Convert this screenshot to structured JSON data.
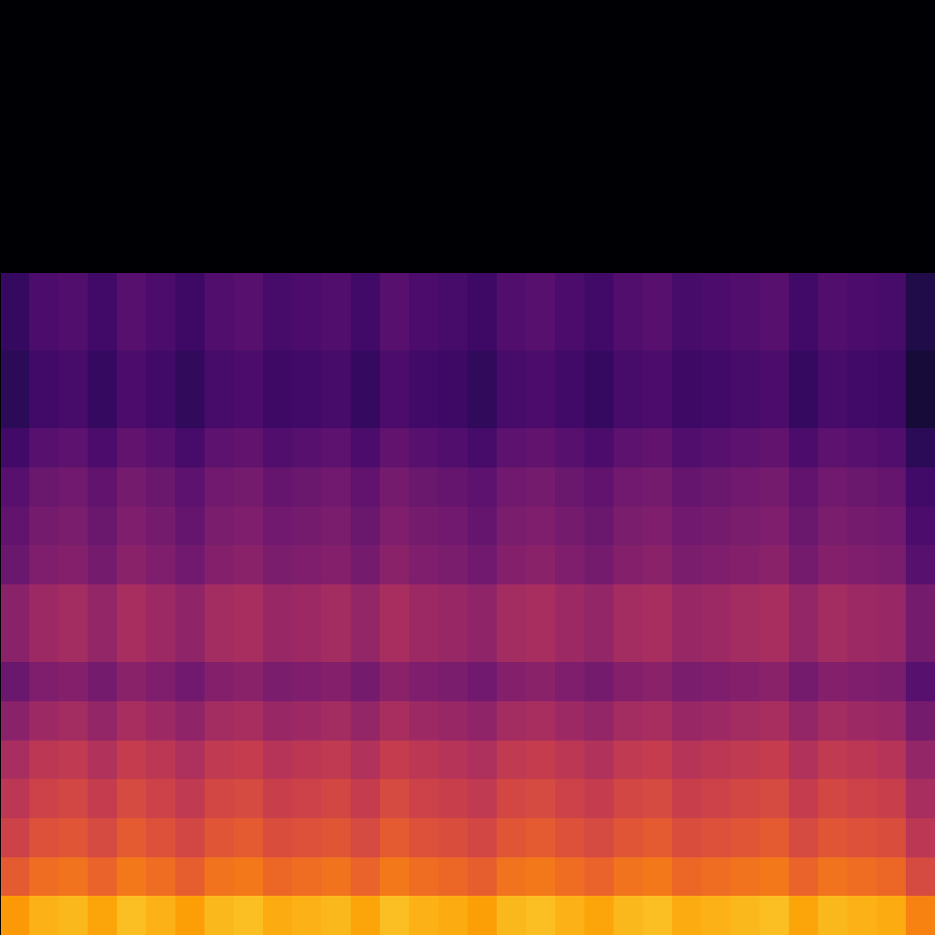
{
  "chart_data": {
    "type": "heatmap",
    "color": "inferno",
    "tick_labels": false,
    "xlim": [
      0,
      32
    ],
    "ylim": [
      0,
      24
    ],
    "zlim": [
      -80,
      0
    ],
    "z": [
      [
        -18,
        -14,
        -13,
        -16,
        -12,
        -14,
        -17,
        -13,
        -12,
        -15,
        -14,
        -13,
        -16,
        -12,
        -14,
        -15,
        -17,
        -13,
        -12,
        -14,
        -16,
        -13,
        -12,
        -15,
        -14,
        -13,
        -12,
        -16,
        -13,
        -14,
        -15,
        -22
      ],
      [
        -30,
        -26,
        -25,
        -28,
        -24,
        -26,
        -29,
        -25,
        -24,
        -27,
        -26,
        -25,
        -28,
        -24,
        -26,
        -27,
        -29,
        -25,
        -24,
        -26,
        -28,
        -25,
        -24,
        -27,
        -26,
        -25,
        -24,
        -28,
        -25,
        -26,
        -27,
        -34
      ],
      [
        -36,
        -32,
        -31,
        -34,
        -30,
        -32,
        -35,
        -31,
        -30,
        -33,
        -32,
        -31,
        -34,
        -30,
        -32,
        -33,
        -35,
        -31,
        -30,
        -32,
        -34,
        -31,
        -30,
        -33,
        -32,
        -31,
        -30,
        -34,
        -31,
        -32,
        -33,
        -40
      ],
      [
        -40,
        -36,
        -35,
        -38,
        -34,
        -36,
        -39,
        -35,
        -34,
        -37,
        -36,
        -35,
        -38,
        -34,
        -36,
        -37,
        -39,
        -35,
        -34,
        -36,
        -38,
        -35,
        -34,
        -37,
        -36,
        -35,
        -34,
        -38,
        -35,
        -36,
        -37,
        -44
      ],
      [
        -44,
        -40,
        -39,
        -42,
        -38,
        -40,
        -43,
        -39,
        -38,
        -41,
        -40,
        -39,
        -42,
        -38,
        -40,
        -41,
        -43,
        -39,
        -38,
        -40,
        -42,
        -39,
        -38,
        -41,
        -40,
        -39,
        -38,
        -42,
        -39,
        -40,
        -41,
        -48
      ],
      [
        -50,
        -46,
        -45,
        -48,
        -44,
        -46,
        -49,
        -45,
        -44,
        -47,
        -46,
        -45,
        -48,
        -44,
        -46,
        -47,
        -49,
        -45,
        -44,
        -46,
        -48,
        -45,
        -44,
        -47,
        -46,
        -45,
        -44,
        -48,
        -45,
        -46,
        -47,
        -54
      ],
      [
        -56,
        -52,
        -51,
        -54,
        -50,
        -52,
        -55,
        -51,
        -50,
        -53,
        -52,
        -51,
        -54,
        -50,
        -52,
        -53,
        -55,
        -51,
        -50,
        -52,
        -54,
        -51,
        -50,
        -53,
        -52,
        -51,
        -50,
        -54,
        -51,
        -52,
        -53,
        -60
      ],
      [
        -50,
        -46,
        -45,
        -48,
        -44,
        -46,
        -49,
        -45,
        -44,
        -47,
        -46,
        -45,
        -48,
        -44,
        -46,
        -47,
        -49,
        -45,
        -44,
        -46,
        -48,
        -45,
        -44,
        -47,
        -46,
        -45,
        -44,
        -48,
        -45,
        -46,
        -47,
        -54
      ],
      [
        -50,
        -46,
        -45,
        -48,
        -44,
        -46,
        -49,
        -45,
        -44,
        -47,
        -46,
        -45,
        -48,
        -44,
        -46,
        -47,
        -49,
        -45,
        -44,
        -46,
        -48,
        -45,
        -44,
        -47,
        -46,
        -45,
        -44,
        -48,
        -45,
        -46,
        -47,
        -54
      ],
      [
        -56,
        -52,
        -51,
        -54,
        -50,
        -52,
        -55,
        -51,
        -50,
        -53,
        -52,
        -51,
        -54,
        -50,
        -52,
        -53,
        -55,
        -51,
        -50,
        -52,
        -54,
        -51,
        -50,
        -53,
        -52,
        -51,
        -50,
        -54,
        -51,
        -52,
        -53,
        -60
      ],
      [
        -58,
        -54,
        -53,
        -56,
        -52,
        -54,
        -57,
        -53,
        -52,
        -55,
        -54,
        -53,
        -56,
        -52,
        -54,
        -55,
        -57,
        -53,
        -52,
        -54,
        -56,
        -53,
        -52,
        -55,
        -54,
        -53,
        -52,
        -56,
        -53,
        -54,
        -55,
        -62
      ],
      [
        -60,
        -56,
        -55,
        -58,
        -54,
        -56,
        -59,
        -55,
        -54,
        -57,
        -56,
        -55,
        -58,
        -54,
        -56,
        -57,
        -59,
        -55,
        -54,
        -56,
        -58,
        -55,
        -54,
        -57,
        -56,
        -55,
        -54,
        -58,
        -55,
        -56,
        -57,
        -64
      ],
      [
        -64,
        -60,
        -59,
        -62,
        -58,
        -60,
        -63,
        -59,
        -58,
        -61,
        -60,
        -59,
        -62,
        -58,
        -60,
        -61,
        -63,
        -59,
        -58,
        -60,
        -62,
        -59,
        -58,
        -61,
        -60,
        -59,
        -58,
        -62,
        -59,
        -60,
        -61,
        -68
      ],
      [
        -68,
        -64,
        -63,
        -66,
        -62,
        -64,
        -67,
        -63,
        -62,
        -65,
        -64,
        -63,
        -66,
        -62,
        -64,
        -65,
        -67,
        -63,
        -62,
        -64,
        -66,
        -63,
        -62,
        -65,
        -64,
        -63,
        -62,
        -66,
        -63,
        -64,
        -65,
        -72
      ],
      [
        -68,
        -64,
        -63,
        -66,
        -62,
        -64,
        -67,
        -63,
        -62,
        -65,
        -64,
        -63,
        -66,
        -62,
        -64,
        -65,
        -67,
        -63,
        -62,
        -64,
        -66,
        -63,
        -62,
        -65,
        -64,
        -63,
        -62,
        -66,
        -63,
        -64,
        -65,
        -72
      ],
      [
        -66,
        -62,
        -61,
        -64,
        -60,
        -62,
        -65,
        -61,
        -60,
        -63,
        -62,
        -61,
        -64,
        -60,
        -62,
        -63,
        -65,
        -61,
        -60,
        -62,
        -64,
        -61,
        -60,
        -63,
        -62,
        -61,
        -60,
        -64,
        -61,
        -62,
        -63,
        -70
      ],
      [
        -66,
        -62,
        -61,
        -64,
        -60,
        -62,
        -65,
        -61,
        -60,
        -63,
        -62,
        -61,
        -64,
        -60,
        -62,
        -63,
        -65,
        -61,
        -60,
        -62,
        -64,
        -61,
        -60,
        -63,
        -62,
        -61,
        -60,
        -64,
        -61,
        -62,
        -63,
        -70
      ],
      [
        -80,
        -80,
        -80,
        -80,
        -80,
        -80,
        -80,
        -80,
        -80,
        -80,
        -80,
        -80,
        -80,
        -80,
        -80,
        -80,
        -80,
        -80,
        -80,
        -80,
        -80,
        -80,
        -80,
        -80,
        -80,
        -80,
        -80,
        -80,
        -80,
        -80,
        -80,
        -80
      ],
      [
        -80,
        -80,
        -80,
        -80,
        -80,
        -80,
        -80,
        -80,
        -80,
        -80,
        -80,
        -80,
        -80,
        -80,
        -80,
        -80,
        -80,
        -80,
        -80,
        -80,
        -80,
        -80,
        -80,
        -80,
        -80,
        -80,
        -80,
        -80,
        -80,
        -80,
        -80,
        -80
      ],
      [
        -80,
        -80,
        -80,
        -80,
        -80,
        -80,
        -80,
        -80,
        -80,
        -80,
        -80,
        -80,
        -80,
        -80,
        -80,
        -80,
        -80,
        -80,
        -80,
        -80,
        -80,
        -80,
        -80,
        -80,
        -80,
        -80,
        -80,
        -80,
        -80,
        -80,
        -80,
        -80
      ],
      [
        -80,
        -80,
        -80,
        -80,
        -80,
        -80,
        -80,
        -80,
        -80,
        -80,
        -80,
        -80,
        -80,
        -80,
        -80,
        -80,
        -80,
        -80,
        -80,
        -80,
        -80,
        -80,
        -80,
        -80,
        -80,
        -80,
        -80,
        -80,
        -80,
        -80,
        -80,
        -80
      ],
      [
        -80,
        -80,
        -80,
        -80,
        -80,
        -80,
        -80,
        -80,
        -80,
        -80,
        -80,
        -80,
        -80,
        -80,
        -80,
        -80,
        -80,
        -80,
        -80,
        -80,
        -80,
        -80,
        -80,
        -80,
        -80,
        -80,
        -80,
        -80,
        -80,
        -80,
        -80,
        -80
      ],
      [
        -80,
        -80,
        -80,
        -80,
        -80,
        -80,
        -80,
        -80,
        -80,
        -80,
        -80,
        -80,
        -80,
        -80,
        -80,
        -80,
        -80,
        -80,
        -80,
        -80,
        -80,
        -80,
        -80,
        -80,
        -80,
        -80,
        -80,
        -80,
        -80,
        -80,
        -80,
        -80
      ],
      [
        -80,
        -80,
        -80,
        -80,
        -80,
        -80,
        -80,
        -80,
        -80,
        -80,
        -80,
        -80,
        -80,
        -80,
        -80,
        -80,
        -80,
        -80,
        -80,
        -80,
        -80,
        -80,
        -80,
        -80,
        -80,
        -80,
        -80,
        -80,
        -80,
        -80,
        -80,
        -80
      ]
    ]
  }
}
